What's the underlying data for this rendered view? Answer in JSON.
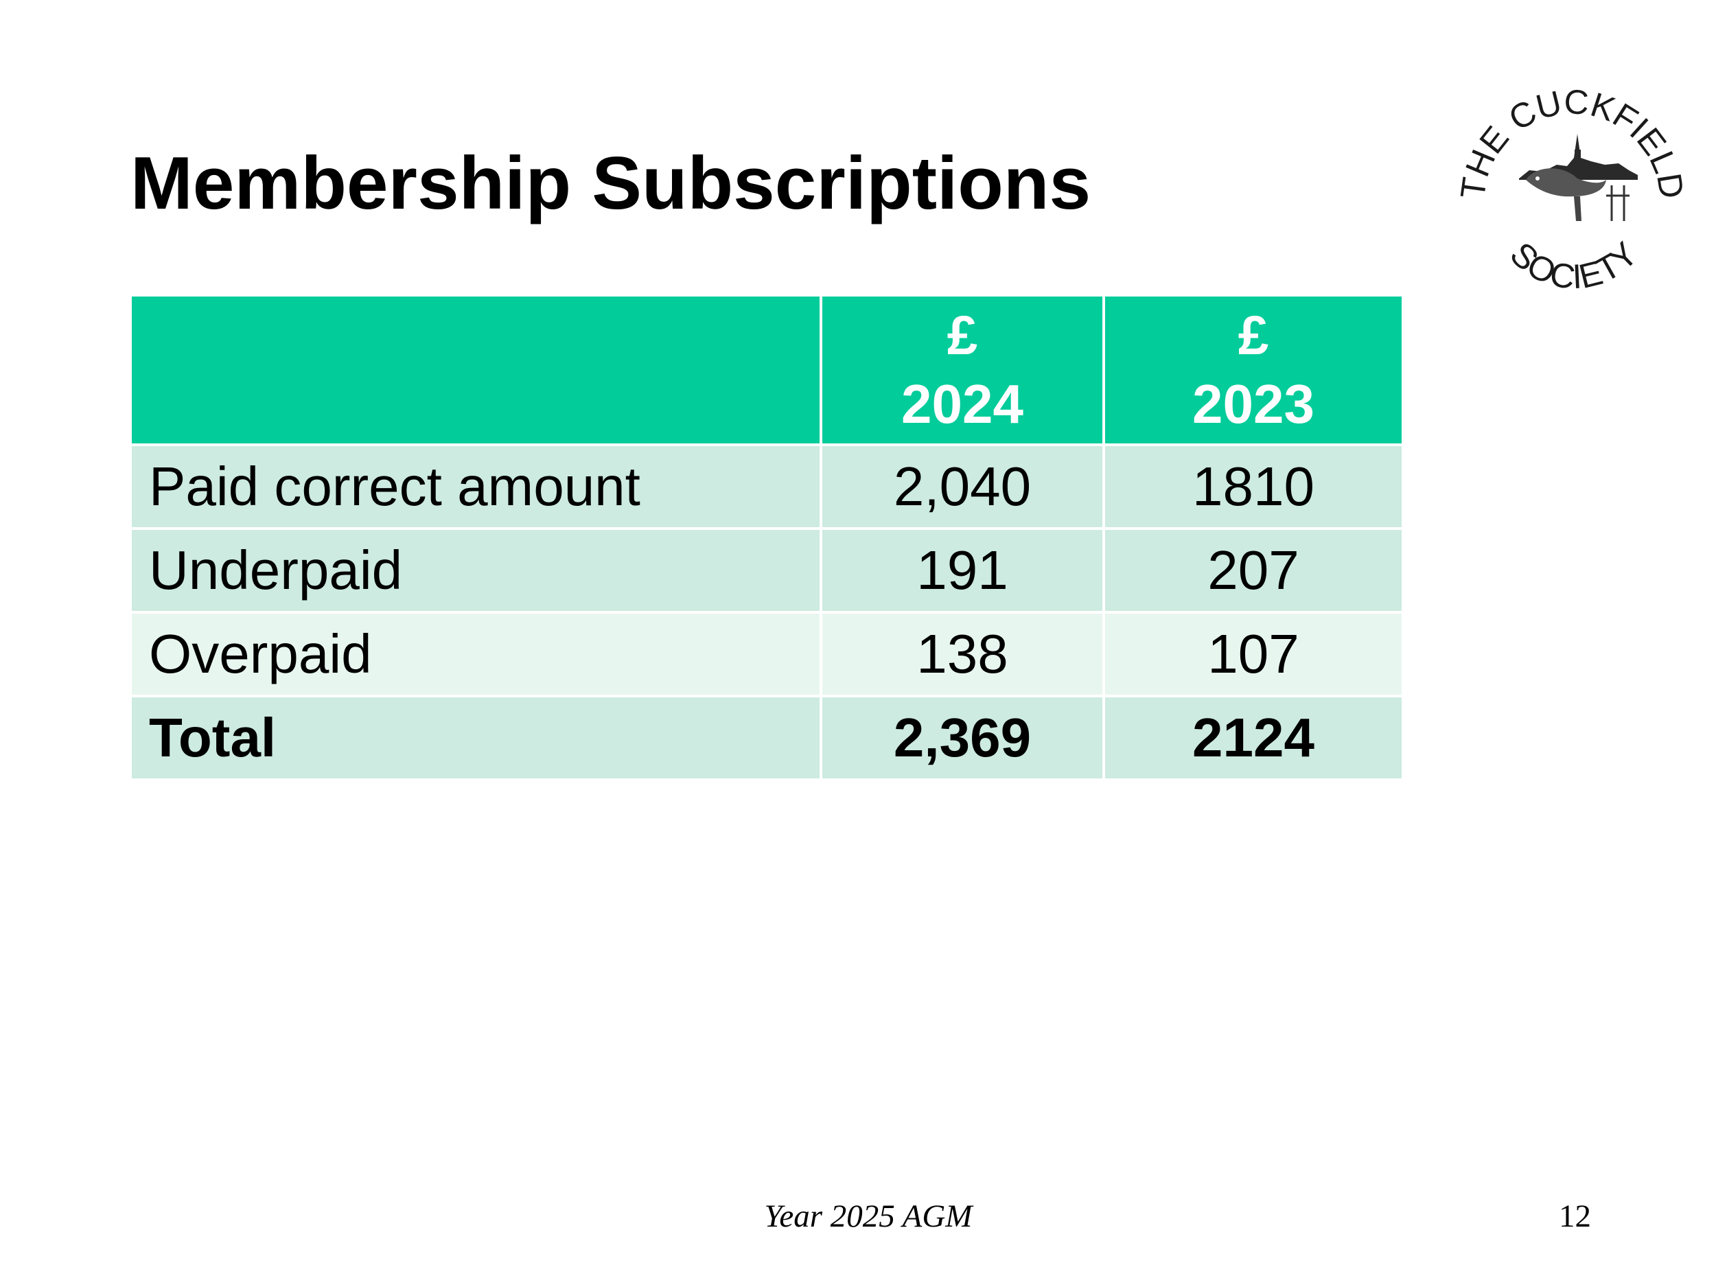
{
  "slide": {
    "title": "Membership Subscriptions",
    "logo": {
      "top_text": "THE CUCKFIELD",
      "bottom_text": "SOCIETY"
    },
    "table": {
      "header": {
        "blank": "",
        "col_2024": {
          "currency": "£",
          "year": "2024"
        },
        "col_2023": {
          "currency": "£",
          "year": "2023"
        }
      },
      "rows": [
        {
          "label": "Paid correct amount",
          "v2024": "2,040",
          "v2023": "1810"
        },
        {
          "label": "Underpaid",
          "v2024": "191",
          "v2023": "207"
        },
        {
          "label": "Overpaid",
          "v2024": "138",
          "v2023": "107"
        },
        {
          "label": "Total",
          "v2024": "2,369",
          "v2023": "2124"
        }
      ]
    },
    "footer": {
      "center": "Year 2025 AGM",
      "page_number": "12"
    },
    "colors": {
      "header_bg": "#02cc9a",
      "row_bg": "#cdebe0",
      "row_alt_bg": "#e8f6f0"
    }
  }
}
